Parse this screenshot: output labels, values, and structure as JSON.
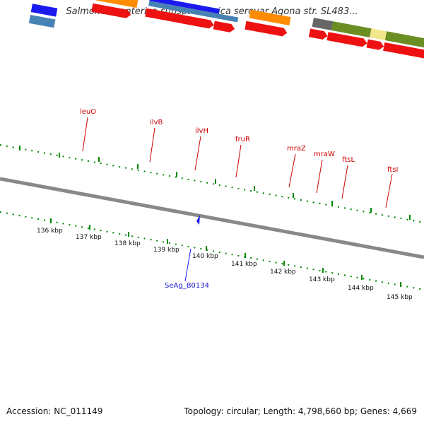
{
  "title": "Salmonella enterica subsp. enterica serovar Agona str. SL483...",
  "footer": {
    "accession": "Accession: NC_011149",
    "summary": "Topology: circular; Length: 4,798,660 bp; Genes: 4,669"
  },
  "kbp_labels": [
    "136 kbp",
    "137 kbp",
    "138 kbp",
    "139 kbp",
    "140 kbp",
    "141 kbp",
    "142 kbp",
    "143 kbp",
    "144 kbp",
    "145 kbp"
  ],
  "gene_labels": [
    "leuO",
    "ilvB",
    "ilvH",
    "fruR",
    "mraZ",
    "mraW",
    "ftsL",
    "ftsI"
  ],
  "locus_label": "SeAg_B0134",
  "colors": {
    "gene_red": "#ee1111",
    "orange": "#ff8c00",
    "blue": "#1a1aee",
    "steel": "#4682b4",
    "olive": "#6b8e23",
    "grey": "#666666",
    "yellow": "#f0e68c",
    "tick_green": "#008800"
  }
}
